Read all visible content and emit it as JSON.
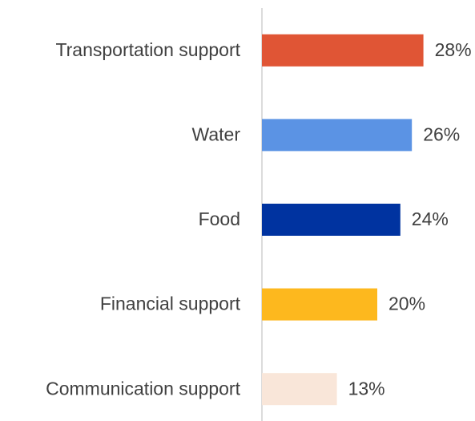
{
  "chart_data": {
    "type": "bar",
    "orientation": "horizontal",
    "categories": [
      "Transportation support",
      "Water",
      "Food",
      "Financial support",
      "Communication support"
    ],
    "values": [
      28,
      26,
      24,
      20,
      13
    ],
    "value_labels": [
      "28%",
      "26%",
      "24%",
      "20%",
      "13%"
    ],
    "colors": [
      "#e05535",
      "#5b93e4",
      "#0033a0",
      "#fdb81e",
      "#f9e6d9"
    ]
  }
}
